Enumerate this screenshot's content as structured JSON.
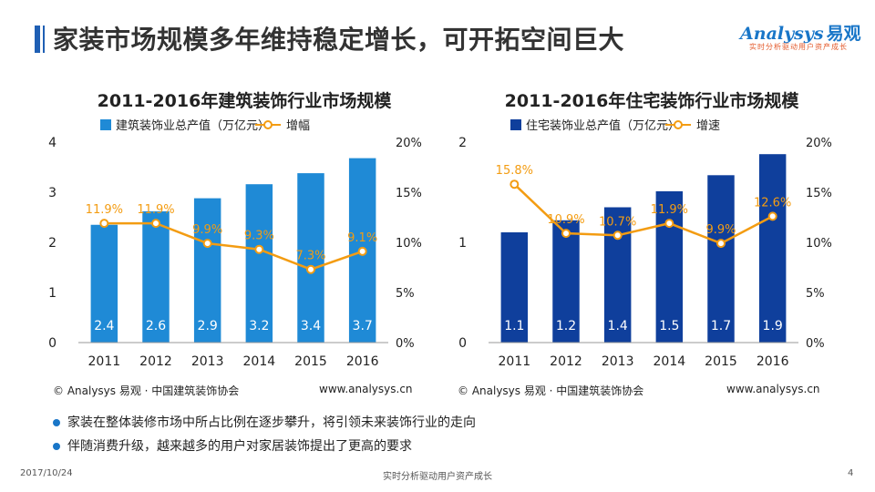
{
  "header": {
    "title": "家装市场规模多年维持稳定增长，可开拓空间巨大",
    "logo_en": "nalysys",
    "logo_a": "A",
    "logo_cn": "易观",
    "logo_slogan": "实时分析驱动用户资产成长"
  },
  "colors": {
    "accent": "#1f5fb4",
    "left_bar": "#1f8ad6",
    "right_bar": "#0f3f9c",
    "line": "#f39c12"
  },
  "chart_data": [
    {
      "type": "bar",
      "title": "2011-2016年建筑装饰行业市场规模",
      "categories": [
        "2011",
        "2012",
        "2013",
        "2014",
        "2015",
        "2016"
      ],
      "series": [
        {
          "name": "建筑装饰业总产值（万亿元）",
          "type": "bar",
          "axis": "left",
          "values": [
            2.35,
            2.62,
            2.88,
            3.16,
            3.38,
            3.68
          ],
          "labels": [
            "2.4",
            "2.6",
            "2.9",
            "3.2",
            "3.4",
            "3.7"
          ]
        },
        {
          "name": "增幅",
          "type": "line",
          "axis": "right",
          "values": [
            11.9,
            11.9,
            9.9,
            9.3,
            7.3,
            9.1
          ],
          "labels": [
            "11.9%",
            "11.9%",
            "9.9%",
            "9.3%",
            "7.3%",
            "9.1%"
          ]
        }
      ],
      "y_left": {
        "min": 0,
        "max": 4,
        "ticks": [
          "0",
          "1",
          "2",
          "3",
          "4"
        ]
      },
      "y_right": {
        "min": 0,
        "max": 20,
        "ticks": [
          "0%",
          "5%",
          "10%",
          "15%",
          "20%"
        ]
      },
      "legend_position": "top"
    },
    {
      "type": "bar",
      "title": "2011-2016年住宅装饰行业市场规模",
      "categories": [
        "2011",
        "2012",
        "2013",
        "2014",
        "2015",
        "2016"
      ],
      "series": [
        {
          "name": "住宅装饰业总产值（万亿元）",
          "type": "bar",
          "axis": "left",
          "values": [
            1.1,
            1.22,
            1.35,
            1.51,
            1.67,
            1.88
          ],
          "labels": [
            "1.1",
            "1.2",
            "1.4",
            "1.5",
            "1.7",
            "1.9"
          ]
        },
        {
          "name": "增速",
          "type": "line",
          "axis": "right",
          "values": [
            15.8,
            10.9,
            10.7,
            11.9,
            9.9,
            12.6
          ],
          "labels": [
            "15.8%",
            "10.9%",
            "10.7%",
            "11.9%",
            "9.9%",
            "12.6%"
          ]
        }
      ],
      "y_left": {
        "min": 0,
        "max": 2,
        "ticks": [
          "0",
          "1",
          "2"
        ]
      },
      "y_right": {
        "min": 0,
        "max": 20,
        "ticks": [
          "0%",
          "5%",
          "10%",
          "15%",
          "20%"
        ]
      },
      "legend_position": "top"
    }
  ],
  "sources": {
    "left_source": "© Analysys 易观 · 中国建筑装饰协会",
    "left_url": "www.analysys.cn",
    "right_source": "© Analysys 易观 · 中国建筑装饰协会",
    "right_url": "www.analysys.cn"
  },
  "bullets": [
    "家装在整体装修市场中所占比例在逐步攀升，将引领未来装饰行业的走向",
    "伴随消费升级，越来越多的用户对家居装饰提出了更高的要求"
  ],
  "footer": {
    "date": "2017/10/24",
    "slogan": "实时分析驱动用户资产成长",
    "page": "4"
  }
}
